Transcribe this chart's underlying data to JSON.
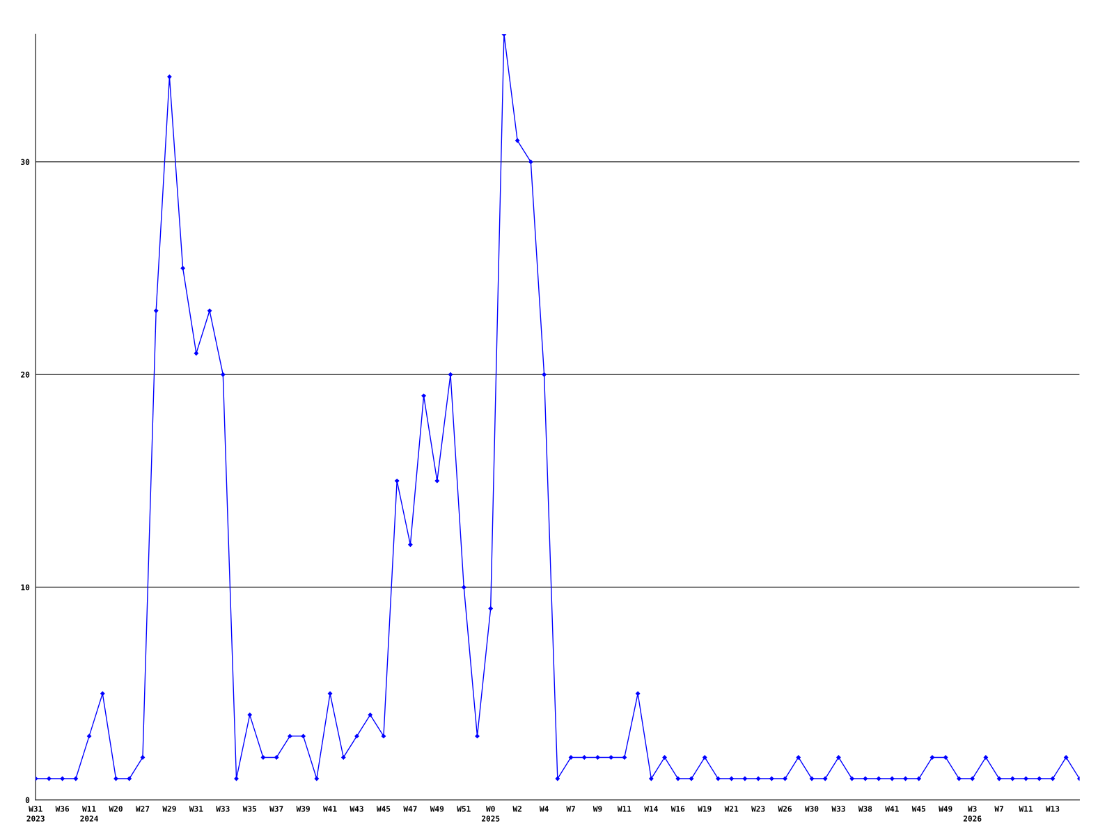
{
  "chart_data": {
    "type": "line",
    "categories": [
      "W31\n2023",
      null,
      "W36",
      null,
      "W11\n2024",
      null,
      "W20",
      null,
      "W27",
      null,
      "W29",
      null,
      "W31",
      null,
      "W33",
      null,
      "W35",
      null,
      "W37",
      null,
      "W39",
      null,
      "W41",
      null,
      "W43",
      null,
      "W45",
      null,
      "W47",
      null,
      "W49",
      null,
      "W51",
      null,
      "W0\n2025",
      null,
      "W2",
      null,
      "W4",
      null,
      "W7",
      null,
      "W9",
      null,
      "W11",
      null,
      "W14",
      null,
      "W16",
      null,
      "W19",
      null,
      "W21",
      null,
      "W23",
      null,
      "W26",
      null,
      "W30",
      null,
      "W33",
      null,
      "W38",
      null,
      "W41",
      null,
      "W45",
      null,
      "W49",
      null,
      "W3\n2026",
      null,
      "W7",
      null,
      "W11",
      null,
      "W13",
      null,
      null
    ],
    "series": [
      {
        "color": "#0000ff",
        "values": [
          1,
          1,
          1,
          1,
          3,
          5,
          1,
          1,
          2,
          23,
          34,
          25,
          21,
          23,
          20,
          1,
          4,
          2,
          2,
          3,
          3,
          1,
          5,
          2,
          3,
          4,
          3,
          15,
          12,
          19,
          15,
          20,
          10,
          3,
          9,
          36,
          31,
          30,
          20,
          1,
          2,
          2,
          2,
          2,
          2,
          5,
          1,
          2,
          1,
          1,
          2,
          1,
          1,
          1,
          1,
          1,
          1,
          2,
          1,
          1,
          2,
          1,
          1,
          1,
          1,
          1,
          1,
          2,
          2,
          1,
          1,
          2,
          1,
          1,
          1,
          1,
          1,
          2,
          1
        ]
      }
    ],
    "ylim": [
      0,
      36
    ],
    "yticks": [
      0,
      10,
      20,
      30
    ],
    "grid": "y",
    "marker": "diamond",
    "line_style": "solid",
    "legend": false
  }
}
